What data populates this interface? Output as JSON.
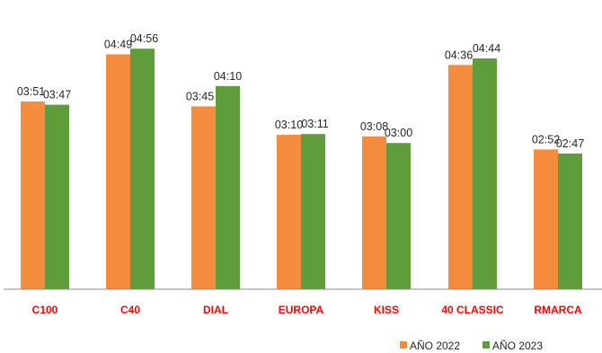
{
  "chart_data": {
    "type": "bar",
    "categories": [
      "C100",
      "C40",
      "DIAL",
      "EUROPA",
      "KISS",
      "40 CLASSIC",
      "RMARCA"
    ],
    "series": [
      {
        "name": "AÑO 2022",
        "color": "#f58b3c",
        "values": [
          231,
          289,
          225,
          190,
          188,
          276,
          172
        ],
        "labels": [
          "03:51",
          "04:49",
          "03:45",
          "03:10",
          "03:08",
          "04:36",
          "02:52"
        ]
      },
      {
        "name": "AÑO 2023",
        "color": "#5e9d3a",
        "values": [
          227,
          296,
          250,
          191,
          180,
          284,
          167
        ],
        "labels": [
          "03:47",
          "04:56",
          "04:10",
          "03:11",
          "03:00",
          "04:44",
          "02:47"
        ]
      }
    ],
    "ylim": [
      0,
      340
    ],
    "value_unit": "seconds (shown as mm:ss)",
    "legend_position": "bottom-right",
    "category_label_color": "#ff0000",
    "grid": false
  }
}
